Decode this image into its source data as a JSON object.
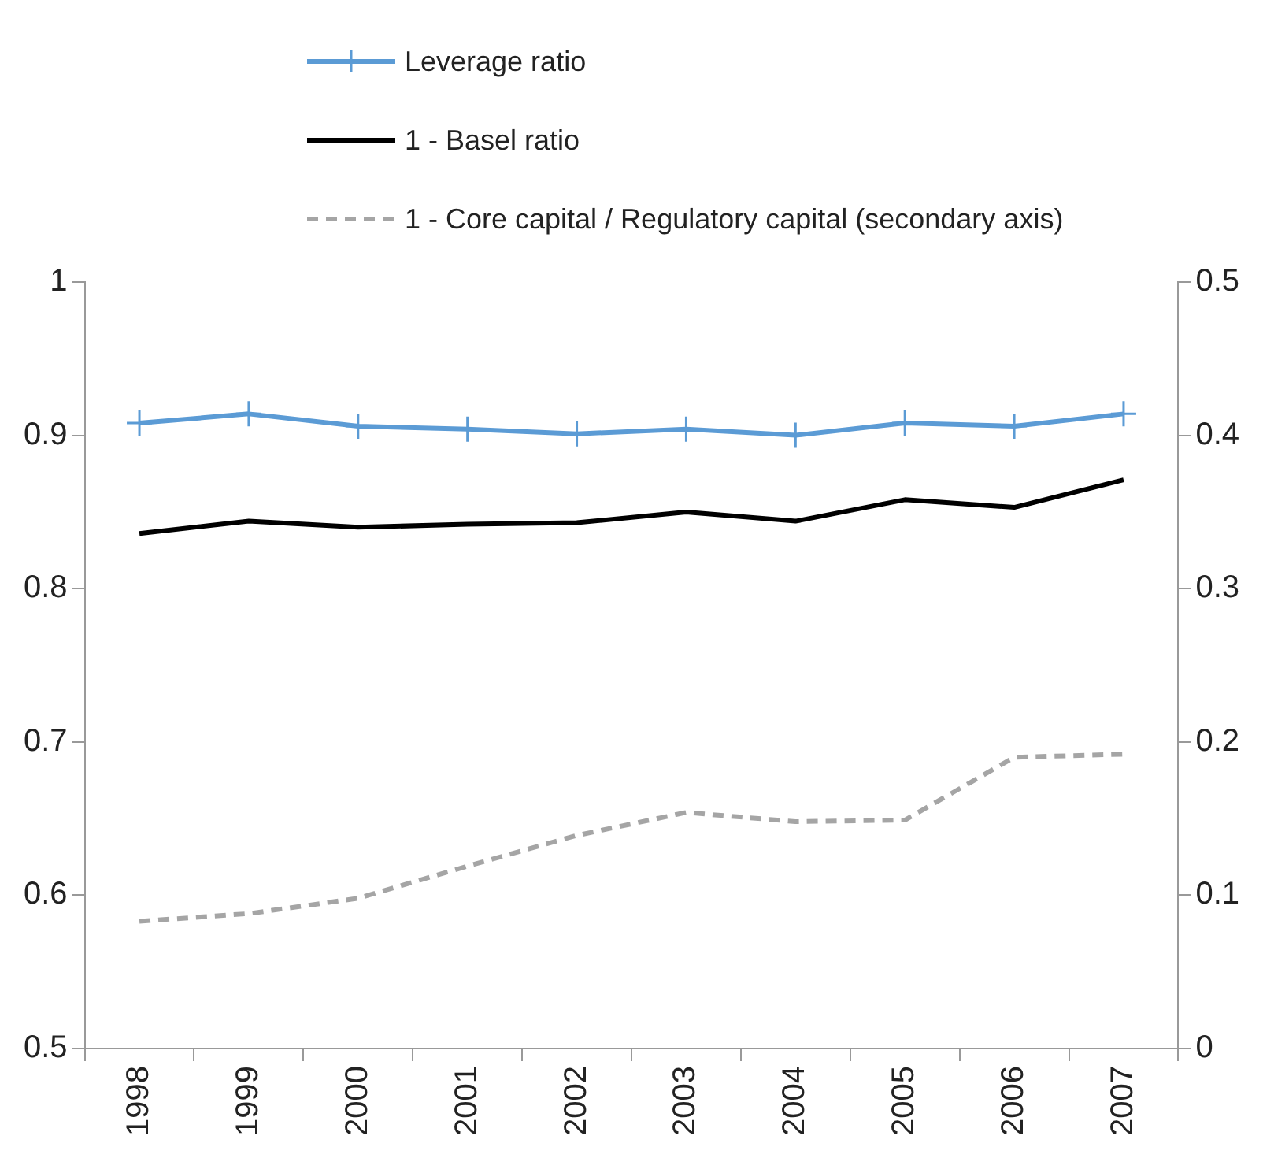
{
  "chart_data": {
    "type": "line",
    "categories": [
      "1998",
      "1999",
      "2000",
      "2001",
      "2002",
      "2003",
      "2004",
      "2005",
      "2006",
      "2007"
    ],
    "series": [
      {
        "name": "Leverage ratio",
        "color": "#5b9bd5",
        "marker": "cross",
        "line_style": "solid",
        "values": [
          0.908,
          0.914,
          0.906,
          0.904,
          0.901,
          0.904,
          0.9,
          0.908,
          0.906,
          0.914
        ]
      },
      {
        "name": "1 - Basel ratio",
        "color": "#000000",
        "marker": "none",
        "line_style": "solid",
        "values": [
          0.836,
          0.844,
          0.84,
          0.842,
          0.843,
          0.85,
          0.844,
          0.858,
          0.853,
          0.871
        ]
      },
      {
        "name": "1 - Core capital / Regulatory capital (secondary axis)",
        "color": "#a5a5a5",
        "marker": "none",
        "line_style": "dashed",
        "axis": "y2",
        "values": [
          0.083,
          0.088,
          0.098,
          0.119,
          0.139,
          0.154,
          0.148,
          0.149,
          0.19,
          0.192
        ]
      }
    ],
    "ylim": [
      0.5,
      1
    ],
    "yticks": [
      {
        "value": 0.5,
        "label": "0.5"
      },
      {
        "value": 0.6,
        "label": "0.6"
      },
      {
        "value": 0.7,
        "label": "0.7"
      },
      {
        "value": 0.8,
        "label": "0.8"
      },
      {
        "value": 0.9,
        "label": "0.9"
      },
      {
        "value": 1,
        "label": "1"
      }
    ],
    "y2lim": [
      0,
      0.5
    ],
    "y2ticks": [
      {
        "value": 0,
        "label": "0"
      },
      {
        "value": 0.1,
        "label": "0.1"
      },
      {
        "value": 0.2,
        "label": "0.2"
      },
      {
        "value": 0.3,
        "label": "0.3"
      },
      {
        "value": 0.4,
        "label": "0.4"
      },
      {
        "value": 0.5,
        "label": "0.5"
      }
    ],
    "grid": false,
    "legend": "top"
  }
}
